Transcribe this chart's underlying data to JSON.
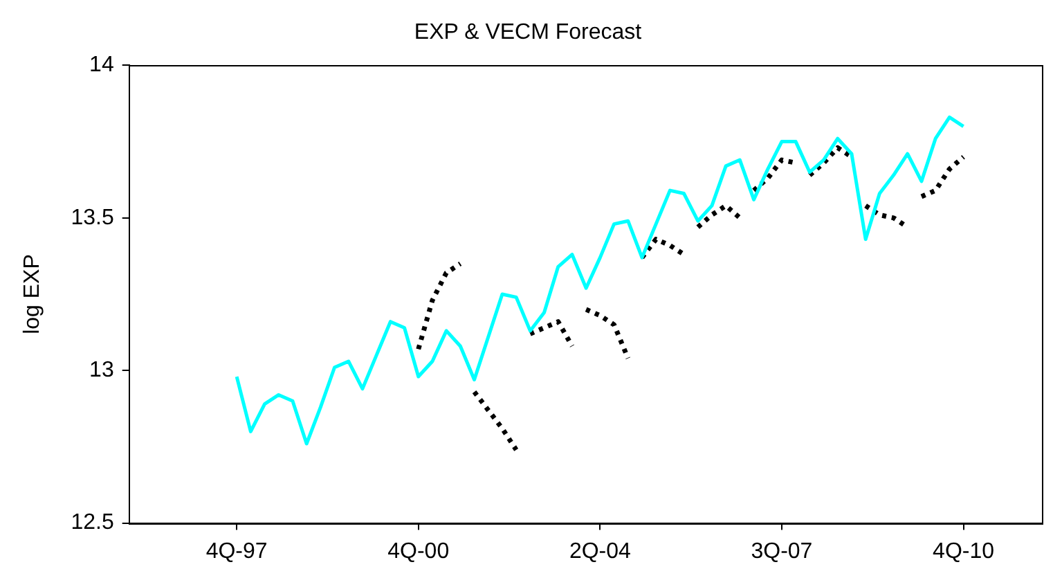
{
  "chart_data": {
    "type": "line",
    "title": "EXP & VECM Forecast",
    "ylabel": "log EXP",
    "categories": [
      "4Q-97",
      null,
      null,
      null,
      null,
      null,
      null,
      null,
      null,
      null,
      null,
      null,
      null,
      "4Q-00",
      null,
      null,
      null,
      null,
      null,
      null,
      null,
      null,
      null,
      null,
      null,
      null,
      "2Q-04",
      null,
      null,
      null,
      null,
      null,
      null,
      null,
      null,
      null,
      null,
      null,
      null,
      "3Q-07",
      null,
      null,
      null,
      null,
      null,
      null,
      null,
      null,
      null,
      null,
      null,
      null,
      "4Q-10"
    ],
    "ylim": [
      12.5,
      14
    ],
    "yticks": [
      12.5,
      13,
      13.5,
      14
    ],
    "grid": false,
    "legend": false,
    "series": [
      {
        "color": "#00ffff",
        "line_style": "solid",
        "values": [
          12.98,
          12.8,
          12.89,
          12.92,
          12.9,
          12.76,
          12.88,
          13.01,
          13.03,
          12.94,
          13.05,
          13.16,
          13.14,
          12.98,
          13.03,
          13.13,
          13.08,
          12.97,
          13.11,
          13.25,
          13.24,
          13.13,
          13.19,
          13.34,
          13.38,
          13.27,
          13.37,
          13.48,
          13.49,
          13.37,
          13.48,
          13.59,
          13.58,
          13.49,
          13.54,
          13.67,
          13.69,
          13.56,
          13.66,
          13.75,
          13.75,
          13.65,
          13.69,
          13.76,
          13.71,
          13.43,
          13.58,
          13.64,
          13.71,
          13.62,
          13.76,
          13.83,
          13.8
        ]
      },
      {
        "color": "#000000",
        "line_style": "dotted",
        "values": [
          null,
          null,
          null,
          null,
          null,
          null,
          null,
          null,
          null,
          null,
          null,
          null,
          null,
          13.07,
          13.23,
          13.32,
          13.35,
          null,
          null,
          null,
          null,
          null,
          null,
          null,
          null,
          null,
          null,
          null,
          null,
          null,
          null,
          null,
          null,
          null,
          null,
          null,
          null,
          null,
          null,
          null,
          null,
          null,
          null,
          null,
          null,
          null,
          null,
          null,
          null,
          null,
          null,
          null,
          null
        ]
      },
      {
        "color": "#000000",
        "line_style": "dotted",
        "values": [
          null,
          null,
          null,
          null,
          null,
          null,
          null,
          null,
          null,
          null,
          null,
          null,
          null,
          null,
          null,
          null,
          null,
          12.93,
          12.87,
          12.81,
          12.74,
          null,
          null,
          null,
          null,
          null,
          null,
          null,
          null,
          null,
          null,
          null,
          null,
          null,
          null,
          null,
          null,
          null,
          null,
          null,
          null,
          null,
          null,
          null,
          null,
          null,
          null,
          null,
          null,
          null,
          null,
          null,
          null
        ]
      },
      {
        "color": "#000000",
        "line_style": "dotted",
        "values": [
          null,
          null,
          null,
          null,
          null,
          null,
          null,
          null,
          null,
          null,
          null,
          null,
          null,
          null,
          null,
          null,
          null,
          null,
          null,
          null,
          null,
          13.12,
          13.14,
          13.16,
          13.08,
          null,
          null,
          null,
          null,
          null,
          null,
          null,
          null,
          null,
          null,
          null,
          null,
          null,
          null,
          null,
          null,
          null,
          null,
          null,
          null,
          null,
          null,
          null,
          null,
          null,
          null,
          null,
          null
        ]
      },
      {
        "color": "#000000",
        "line_style": "dotted",
        "values": [
          null,
          null,
          null,
          null,
          null,
          null,
          null,
          null,
          null,
          null,
          null,
          null,
          null,
          null,
          null,
          null,
          null,
          null,
          null,
          null,
          null,
          null,
          null,
          null,
          null,
          13.2,
          13.18,
          13.15,
          13.04,
          null,
          null,
          null,
          null,
          null,
          null,
          null,
          null,
          null,
          null,
          null,
          null,
          null,
          null,
          null,
          null,
          null,
          null,
          null,
          null,
          null,
          null,
          null,
          null
        ]
      },
      {
        "color": "#000000",
        "line_style": "dotted",
        "values": [
          null,
          null,
          null,
          null,
          null,
          null,
          null,
          null,
          null,
          null,
          null,
          null,
          null,
          null,
          null,
          null,
          null,
          null,
          null,
          null,
          null,
          null,
          null,
          null,
          null,
          null,
          null,
          null,
          null,
          13.37,
          13.43,
          13.41,
          13.38,
          null,
          null,
          null,
          null,
          null,
          null,
          null,
          null,
          null,
          null,
          null,
          null,
          null,
          null,
          null,
          null,
          null,
          null,
          null,
          null
        ]
      },
      {
        "color": "#000000",
        "line_style": "dotted",
        "values": [
          null,
          null,
          null,
          null,
          null,
          null,
          null,
          null,
          null,
          null,
          null,
          null,
          null,
          null,
          null,
          null,
          null,
          null,
          null,
          null,
          null,
          null,
          null,
          null,
          null,
          null,
          null,
          null,
          null,
          null,
          null,
          null,
          null,
          13.47,
          13.51,
          13.54,
          13.5,
          null,
          null,
          null,
          null,
          null,
          null,
          null,
          null,
          null,
          null,
          null,
          null,
          null,
          null,
          null,
          null
        ]
      },
      {
        "color": "#000000",
        "line_style": "dotted",
        "values": [
          null,
          null,
          null,
          null,
          null,
          null,
          null,
          null,
          null,
          null,
          null,
          null,
          null,
          null,
          null,
          null,
          null,
          null,
          null,
          null,
          null,
          null,
          null,
          null,
          null,
          null,
          null,
          null,
          null,
          null,
          null,
          null,
          null,
          null,
          null,
          null,
          null,
          13.59,
          13.63,
          13.69,
          13.68,
          null,
          null,
          null,
          null,
          null,
          null,
          null,
          null,
          null,
          null,
          null,
          null
        ]
      },
      {
        "color": "#000000",
        "line_style": "dotted",
        "values": [
          null,
          null,
          null,
          null,
          null,
          null,
          null,
          null,
          null,
          null,
          null,
          null,
          null,
          null,
          null,
          null,
          null,
          null,
          null,
          null,
          null,
          null,
          null,
          null,
          null,
          null,
          null,
          null,
          null,
          null,
          null,
          null,
          null,
          null,
          null,
          null,
          null,
          null,
          null,
          null,
          null,
          13.64,
          13.68,
          13.73,
          13.7,
          null,
          null,
          null,
          null,
          null,
          null,
          null,
          null
        ]
      },
      {
        "color": "#000000",
        "line_style": "dotted",
        "values": [
          null,
          null,
          null,
          null,
          null,
          null,
          null,
          null,
          null,
          null,
          null,
          null,
          null,
          null,
          null,
          null,
          null,
          null,
          null,
          null,
          null,
          null,
          null,
          null,
          null,
          null,
          null,
          null,
          null,
          null,
          null,
          null,
          null,
          null,
          null,
          null,
          null,
          null,
          null,
          null,
          null,
          null,
          null,
          null,
          null,
          13.54,
          13.51,
          13.5,
          13.47,
          null,
          null,
          null,
          null
        ]
      },
      {
        "color": "#000000",
        "line_style": "dotted",
        "values": [
          null,
          null,
          null,
          null,
          null,
          null,
          null,
          null,
          null,
          null,
          null,
          null,
          null,
          null,
          null,
          null,
          null,
          null,
          null,
          null,
          null,
          null,
          null,
          null,
          null,
          null,
          null,
          null,
          null,
          null,
          null,
          null,
          null,
          null,
          null,
          null,
          null,
          null,
          null,
          null,
          null,
          null,
          null,
          null,
          null,
          null,
          null,
          null,
          null,
          13.57,
          13.59,
          13.66,
          13.7
        ]
      }
    ]
  }
}
